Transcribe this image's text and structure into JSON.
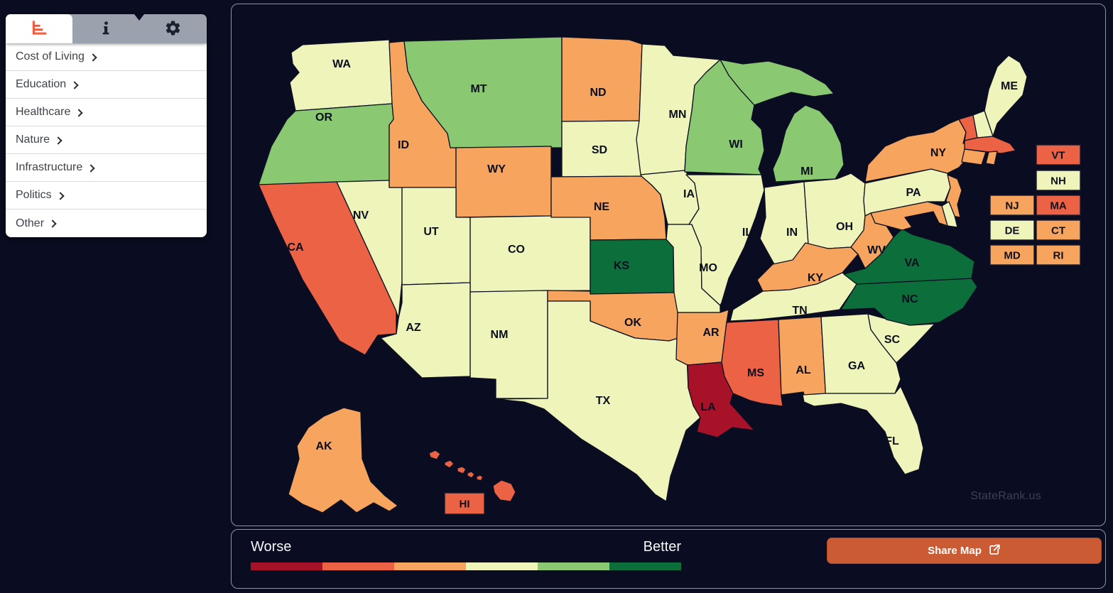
{
  "page": {
    "background": "#0a0c21",
    "watermark": "StateRank.us"
  },
  "sidebar": {
    "tabs": [
      {
        "name": "rankings",
        "icon": "bar-chart-icon",
        "active": true
      },
      {
        "name": "info",
        "icon": "info-icon",
        "active": false
      },
      {
        "name": "settings",
        "icon": "gear-icon",
        "active": false
      }
    ],
    "menu_items": [
      {
        "label": "Cost of Living"
      },
      {
        "label": "Education"
      },
      {
        "label": "Healthcare"
      },
      {
        "label": "Nature"
      },
      {
        "label": "Infrastructure"
      },
      {
        "label": "Politics"
      },
      {
        "label": "Other"
      }
    ]
  },
  "map": {
    "ocean_color": "#0a0c21",
    "state_border_color": "#0d1022",
    "label_color": "#0b0e1f",
    "small_state_boxes": [
      "VT",
      "NH",
      "NJ",
      "MA",
      "DE",
      "CT",
      "MD",
      "RI"
    ],
    "hawaii_label_box": "HI",
    "states": [
      {
        "id": "WA",
        "level": "neutral"
      },
      {
        "id": "OR",
        "level": "good"
      },
      {
        "id": "CA",
        "level": "bad"
      },
      {
        "id": "NV",
        "level": "neutral"
      },
      {
        "id": "ID",
        "level": "poor"
      },
      {
        "id": "MT",
        "level": "good"
      },
      {
        "id": "WY",
        "level": "poor"
      },
      {
        "id": "UT",
        "level": "neutral"
      },
      {
        "id": "CO",
        "level": "neutral"
      },
      {
        "id": "AZ",
        "level": "neutral"
      },
      {
        "id": "NM",
        "level": "neutral"
      },
      {
        "id": "ND",
        "level": "poor"
      },
      {
        "id": "SD",
        "level": "neutral"
      },
      {
        "id": "NE",
        "level": "poor"
      },
      {
        "id": "KS",
        "level": "best"
      },
      {
        "id": "OK",
        "level": "poor"
      },
      {
        "id": "TX",
        "level": "neutral"
      },
      {
        "id": "MN",
        "level": "neutral"
      },
      {
        "id": "IA",
        "level": "neutral"
      },
      {
        "id": "MO",
        "level": "neutral"
      },
      {
        "id": "AR",
        "level": "poor"
      },
      {
        "id": "LA",
        "level": "worst"
      },
      {
        "id": "WI",
        "level": "good"
      },
      {
        "id": "IL",
        "level": "neutral"
      },
      {
        "id": "IN",
        "level": "neutral"
      },
      {
        "id": "MI",
        "level": "good"
      },
      {
        "id": "OH",
        "level": "neutral"
      },
      {
        "id": "KY",
        "level": "poor"
      },
      {
        "id": "TN",
        "level": "neutral"
      },
      {
        "id": "MS",
        "level": "bad"
      },
      {
        "id": "AL",
        "level": "poor"
      },
      {
        "id": "GA",
        "level": "neutral"
      },
      {
        "id": "SC",
        "level": "neutral"
      },
      {
        "id": "NC",
        "level": "best"
      },
      {
        "id": "VA",
        "level": "best"
      },
      {
        "id": "WV",
        "level": "poor"
      },
      {
        "id": "FL",
        "level": "neutral"
      },
      {
        "id": "PA",
        "level": "neutral"
      },
      {
        "id": "NY",
        "level": "poor"
      },
      {
        "id": "ME",
        "level": "neutral"
      },
      {
        "id": "VT",
        "level": "bad"
      },
      {
        "id": "NH",
        "level": "neutral"
      },
      {
        "id": "MA",
        "level": "bad"
      },
      {
        "id": "CT",
        "level": "poor"
      },
      {
        "id": "RI",
        "level": "poor"
      },
      {
        "id": "NJ",
        "level": "poor"
      },
      {
        "id": "DE",
        "level": "neutral"
      },
      {
        "id": "MD",
        "level": "poor"
      },
      {
        "id": "AK",
        "level": "poor"
      },
      {
        "id": "HI",
        "level": "bad"
      }
    ]
  },
  "legend": {
    "worse_label": "Worse",
    "better_label": "Better",
    "scale": [
      {
        "level": "worst",
        "color": "#a81228"
      },
      {
        "level": "bad",
        "color": "#ec6244"
      },
      {
        "level": "poor",
        "color": "#f7a55e"
      },
      {
        "level": "neutral",
        "color": "#eef4ba"
      },
      {
        "level": "good",
        "color": "#8ac872"
      },
      {
        "level": "best",
        "color": "#0c6e3a"
      }
    ]
  },
  "share_button": {
    "label": "Share Map",
    "icon": "share-icon",
    "color": "#cb5b33"
  }
}
